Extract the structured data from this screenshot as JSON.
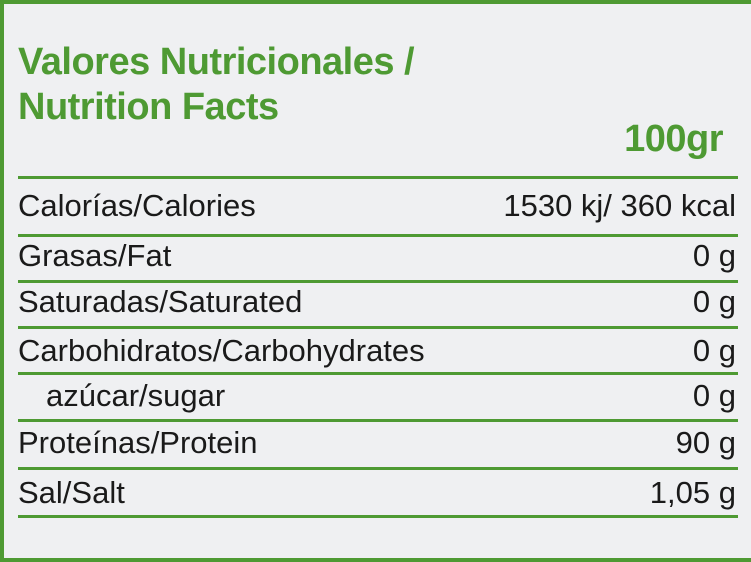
{
  "header": {
    "title_line1": "Valores Nutricionales /",
    "title_line2": "Nutrition Facts",
    "serving": "100gr"
  },
  "rows": [
    {
      "label": "Calorías/Calories",
      "value": "1530 kj/ 360 kcal"
    },
    {
      "label": "Grasas/Fat",
      "value": "0 g"
    },
    {
      "label": "Saturadas/Saturated",
      "value": "0 g"
    },
    {
      "label": "Carbohidratos/Carbohydrates",
      "value": "0 g"
    },
    {
      "label": "azúcar/sugar",
      "value": "0 g"
    },
    {
      "label": "Proteínas/Protein",
      "value": "90 g"
    },
    {
      "label": "Sal/Salt",
      "value": "1,05 g"
    }
  ],
  "colors": {
    "accent": "#4e9a33",
    "background": "#eff0f2",
    "text": "#1a1a1a"
  }
}
